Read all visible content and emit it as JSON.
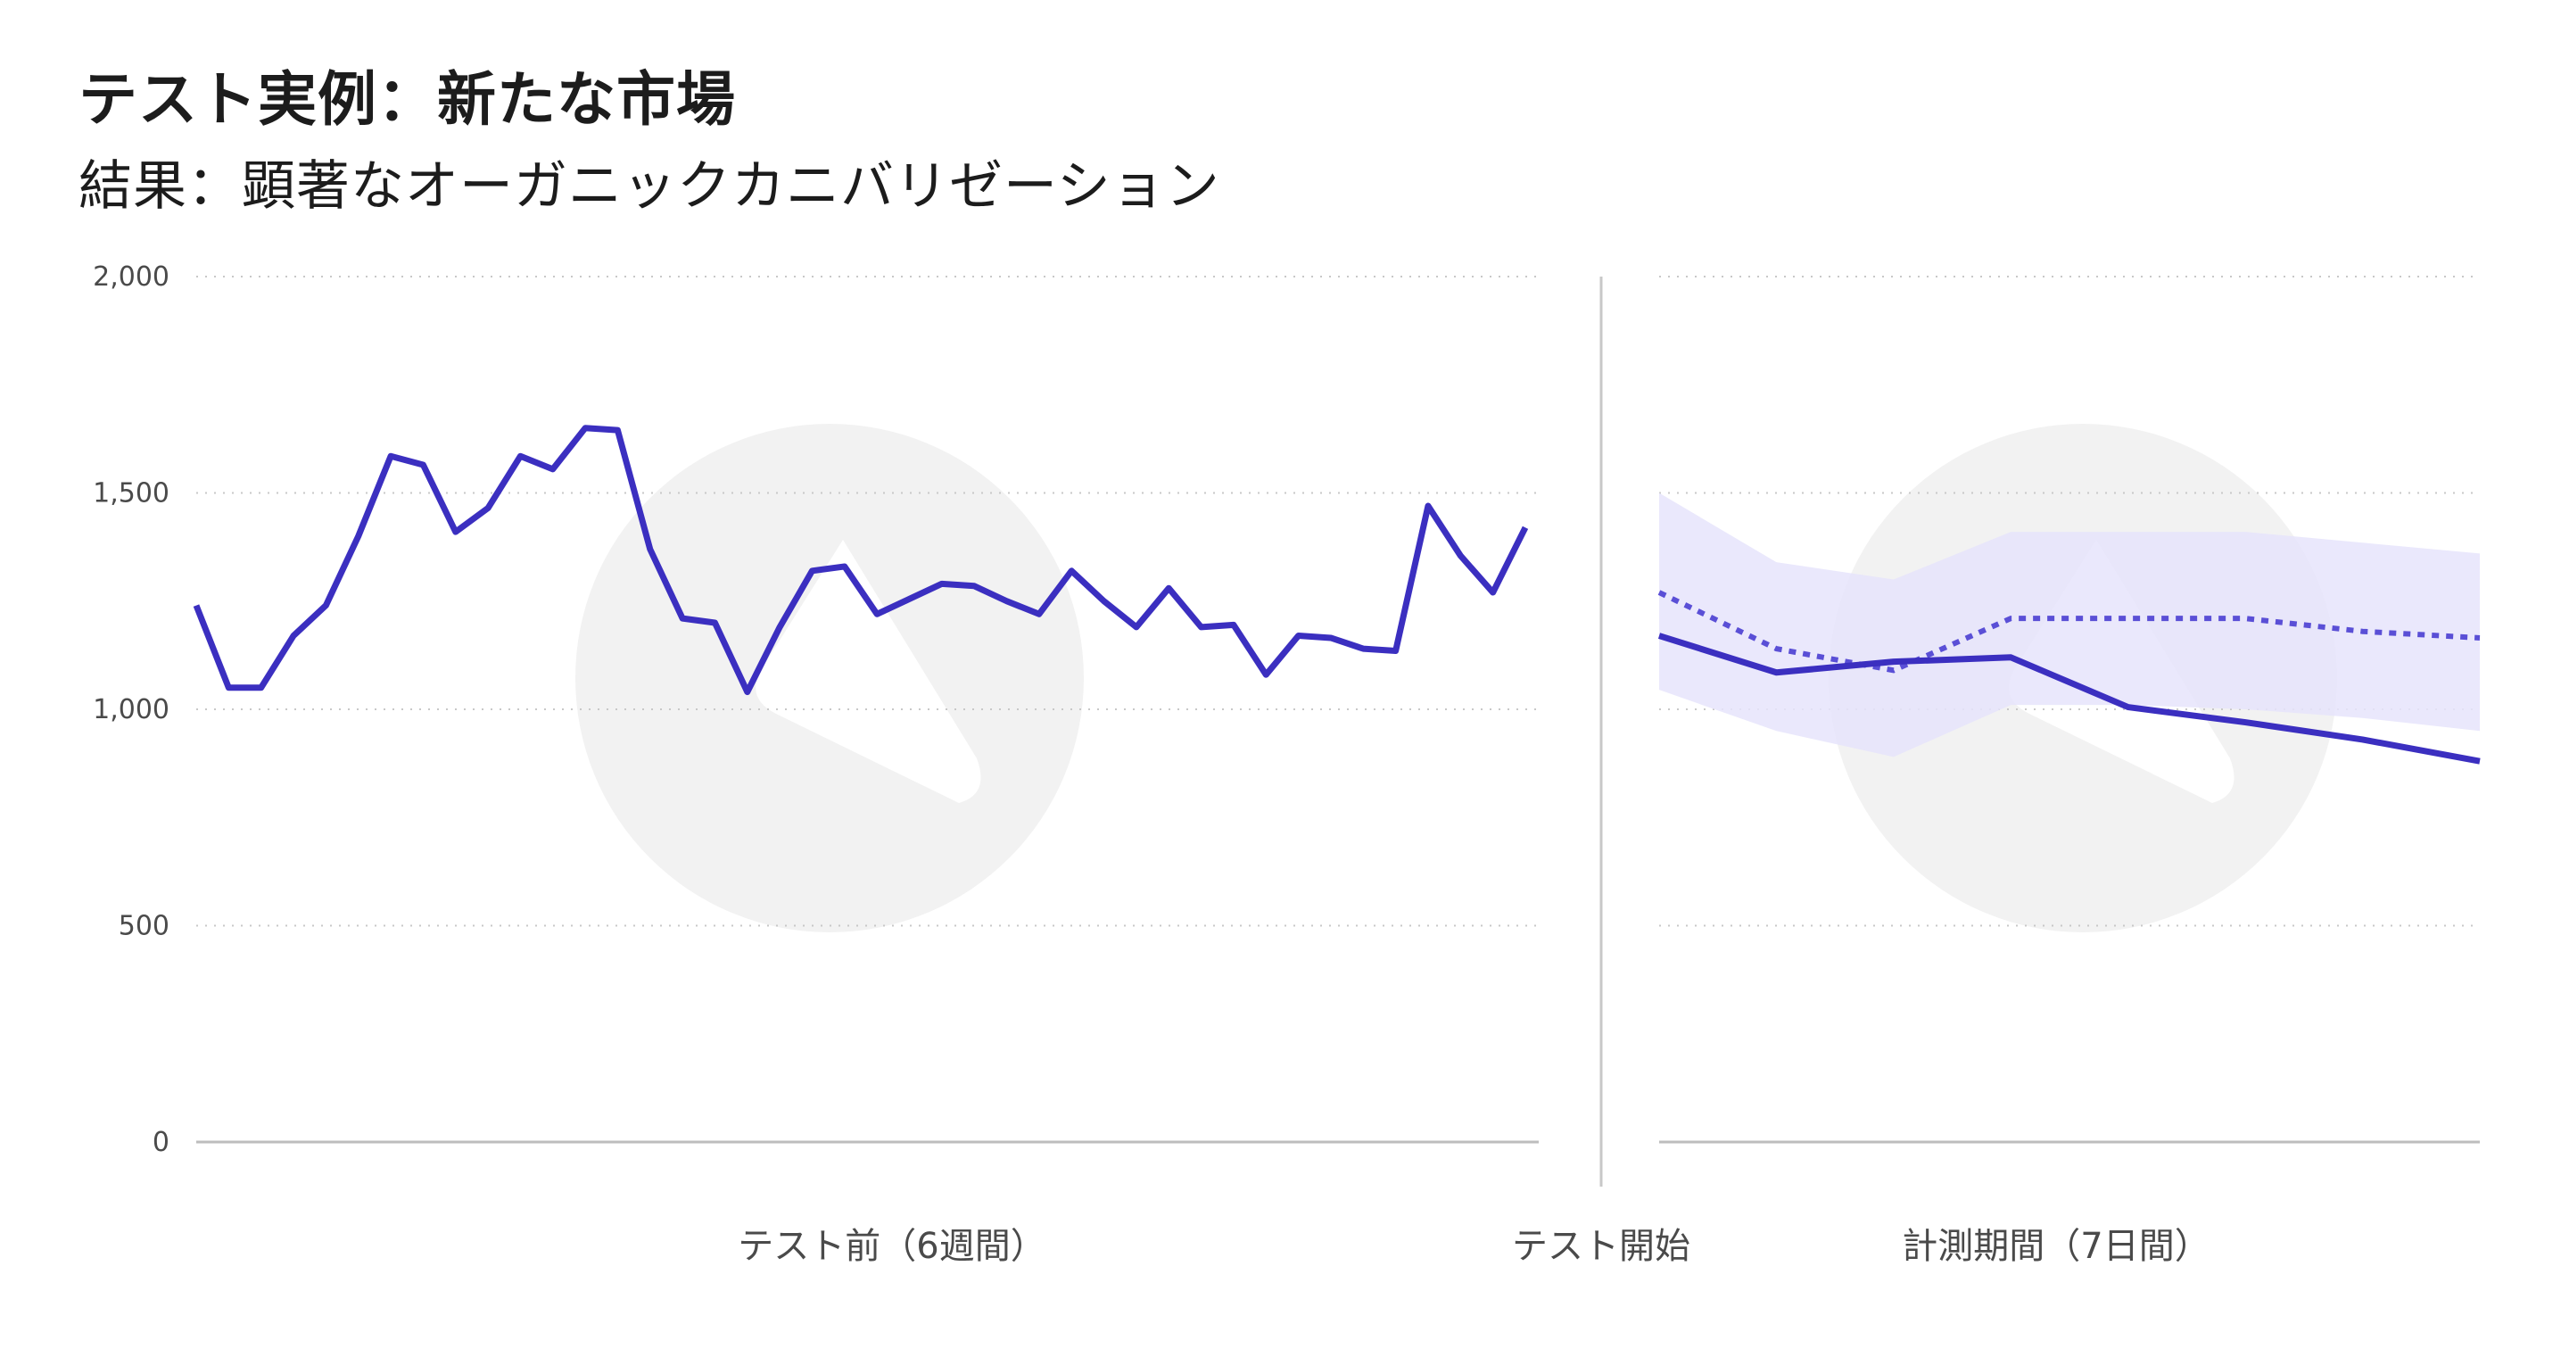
{
  "title": "テスト実例：新たな市場",
  "subtitle": "結果：顕著なオーガニックカニバリゼーション",
  "colors": {
    "line": "#3b2fc0",
    "band": "#e6e4fb",
    "grid": "#c8c8c8",
    "watermark": "#f2f2f2"
  },
  "chart_data": {
    "type": "line",
    "ylim": [
      0,
      2000
    ],
    "yticks": [
      "2,000",
      "1,500",
      "1,000",
      "500",
      "0"
    ],
    "grid": "horizontal dotted",
    "labels": {
      "pre": "テスト前（6週間）",
      "start": "テスト開始",
      "post": "計測期間（7日間）"
    },
    "pre_period": {
      "values": [
        1240,
        1050,
        1050,
        1170,
        1240,
        1400,
        1585,
        1565,
        1410,
        1465,
        1585,
        1555,
        1650,
        1645,
        1370,
        1210,
        1200,
        1040,
        1190,
        1320,
        1330,
        1220,
        1255,
        1290,
        1285,
        1250,
        1220,
        1320,
        1250,
        1190,
        1280,
        1190,
        1195,
        1080,
        1170,
        1165,
        1140,
        1135,
        1470,
        1355,
        1270,
        1420
      ]
    },
    "post_period": {
      "x": [
        0,
        1,
        2,
        3,
        4,
        5,
        6,
        7
      ],
      "actual": [
        1170,
        1085,
        1110,
        1120,
        1005,
        970,
        930,
        880
      ],
      "forecast": [
        1270,
        1140,
        1090,
        1210,
        1210,
        1210,
        1180,
        1165
      ],
      "band_upper": [
        1500,
        1340,
        1300,
        1410,
        1410,
        1410,
        1385,
        1360
      ],
      "band_lower": [
        1045,
        950,
        890,
        1010,
        1010,
        1000,
        980,
        950
      ]
    }
  }
}
